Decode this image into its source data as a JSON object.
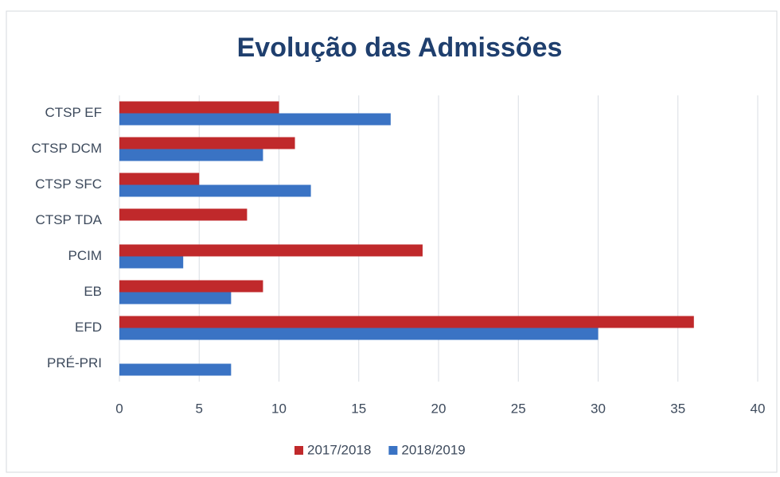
{
  "chart_data": {
    "type": "hbar",
    "title": "Evolução das Admissões",
    "categories": [
      "CTSP EF",
      "CTSP DCM",
      "CTSP SFC",
      "CTSP TDA",
      "PCIM",
      "EB",
      "EFD",
      "PRÉ-PRI"
    ],
    "series": [
      {
        "name": "2017/2018",
        "color": "#c0292b",
        "values": [
          10,
          11,
          5,
          8,
          19,
          9,
          36,
          0
        ]
      },
      {
        "name": "2018/2019",
        "color": "#3a73c4",
        "values": [
          17,
          9,
          12,
          0,
          4,
          7,
          30,
          7
        ]
      }
    ],
    "xlim": [
      0,
      40
    ],
    "xticks": [
      0,
      5,
      10,
      15,
      20,
      25,
      30,
      35,
      40
    ],
    "grid": true
  }
}
